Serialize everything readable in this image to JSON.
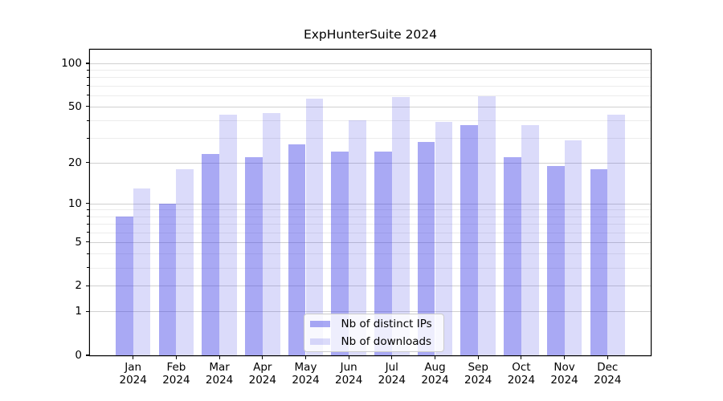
{
  "chart_data": {
    "type": "bar",
    "title": "ExpHunterSuite 2024",
    "categories": [
      "Jan",
      "Feb",
      "Mar",
      "Apr",
      "May",
      "Jun",
      "Jul",
      "Aug",
      "Sep",
      "Oct",
      "Nov",
      "Dec"
    ],
    "category_year": "2024",
    "series": [
      {
        "name": "Nb of distinct IPs",
        "color": "rgba(64,64,230,0.45)",
        "values": [
          8,
          10,
          23,
          22,
          27,
          24,
          24,
          28,
          37,
          22,
          19,
          18
        ]
      },
      {
        "name": "Nb of downloads",
        "color": "rgba(64,64,230,0.19)",
        "values": [
          13,
          18,
          44,
          45,
          57,
          40,
          58,
          39,
          59,
          37,
          29,
          44
        ]
      }
    ],
    "y_scale": "log1p",
    "y_ticks": [
      0,
      1,
      2,
      5,
      10,
      20,
      50,
      100
    ],
    "y_minor_ticks": [
      3,
      4,
      6,
      7,
      8,
      9,
      30,
      40,
      60,
      70,
      80,
      90
    ],
    "ylim": [
      0,
      124
    ],
    "xlabel": "",
    "ylabel": "",
    "grid": true,
    "legend_position": "lower center"
  }
}
